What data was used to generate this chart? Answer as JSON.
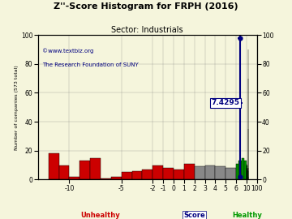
{
  "title": "Z''-Score Histogram for FRPH (2016)",
  "subtitle": "Sector: Industrials",
  "watermark1": "©www.textbiz.org",
  "watermark2": "The Research Foundation of SUNY",
  "xlabel_center": "Score",
  "xlabel_left": "Unhealthy",
  "xlabel_right": "Healthy",
  "ylabel": "Number of companies (573 total)",
  "score_value": 7.4295,
  "score_label": "7.4295",
  "bg_color": "#f5f5dc",
  "title_color": "#000000",
  "subtitle_color": "#000000",
  "watermark_color": "#000080",
  "unhealthy_color": "#cc0000",
  "healthy_color": "#009900",
  "score_line_color": "#000080",
  "bins_info": [
    [
      -12,
      -11,
      18,
      "#cc0000"
    ],
    [
      -11,
      -10,
      10,
      "#cc0000"
    ],
    [
      -10,
      -9,
      2,
      "#cc0000"
    ],
    [
      -9,
      -8,
      13,
      "#cc0000"
    ],
    [
      -8,
      -7,
      15,
      "#cc0000"
    ],
    [
      -7,
      -6,
      1,
      "#cc0000"
    ],
    [
      -6,
      -5,
      2,
      "#cc0000"
    ],
    [
      -5,
      -4,
      5,
      "#cc0000"
    ],
    [
      -4,
      -3,
      6,
      "#cc0000"
    ],
    [
      -3,
      -2,
      7,
      "#cc0000"
    ],
    [
      -2,
      -1,
      10,
      "#cc0000"
    ],
    [
      -1,
      0,
      8,
      "#cc0000"
    ],
    [
      0,
      1,
      7,
      "#cc0000"
    ],
    [
      1,
      2,
      11,
      "#cc0000"
    ],
    [
      2,
      3,
      9,
      "#888888"
    ],
    [
      3,
      4,
      10,
      "#888888"
    ],
    [
      4,
      5,
      9,
      "#888888"
    ],
    [
      5,
      6,
      8,
      "#888888"
    ],
    [
      6,
      7,
      11,
      "#009900"
    ],
    [
      7,
      8,
      13,
      "#009900"
    ],
    [
      8,
      9,
      15,
      "#009900"
    ],
    [
      9,
      10,
      13,
      "#009900"
    ],
    [
      10,
      11,
      11,
      "#009900"
    ],
    [
      11,
      12,
      10,
      "#009900"
    ],
    [
      12,
      13,
      8,
      "#009900"
    ],
    [
      13,
      14,
      10,
      "#009900"
    ],
    [
      14,
      15,
      8,
      "#009900"
    ],
    [
      15,
      16,
      7,
      "#009900"
    ],
    [
      16,
      17,
      7,
      "#009900"
    ],
    [
      17,
      18,
      8,
      "#009900"
    ],
    [
      18,
      19,
      6,
      "#009900"
    ],
    [
      19,
      20,
      7,
      "#009900"
    ],
    [
      20,
      21,
      6,
      "#009900"
    ],
    [
      21,
      22,
      8,
      "#009900"
    ],
    [
      22,
      23,
      35,
      "#009900"
    ],
    [
      23,
      24,
      90,
      "#009900"
    ],
    [
      24,
      25,
      70,
      "#009900"
    ],
    [
      25,
      26,
      2,
      "#009900"
    ]
  ],
  "tick_scores": [
    -10,
    -5,
    -2,
    -1,
    0,
    1,
    2,
    3,
    4,
    5,
    6,
    10,
    100
  ],
  "tick_labels": [
    "-10",
    "-5",
    "-2",
    "-1",
    "0",
    "1",
    "2",
    "3",
    "4",
    "5",
    "6",
    "10",
    "100"
  ],
  "ylim": [
    0,
    100
  ],
  "yticks": [
    0,
    20,
    40,
    60,
    80,
    100
  ]
}
